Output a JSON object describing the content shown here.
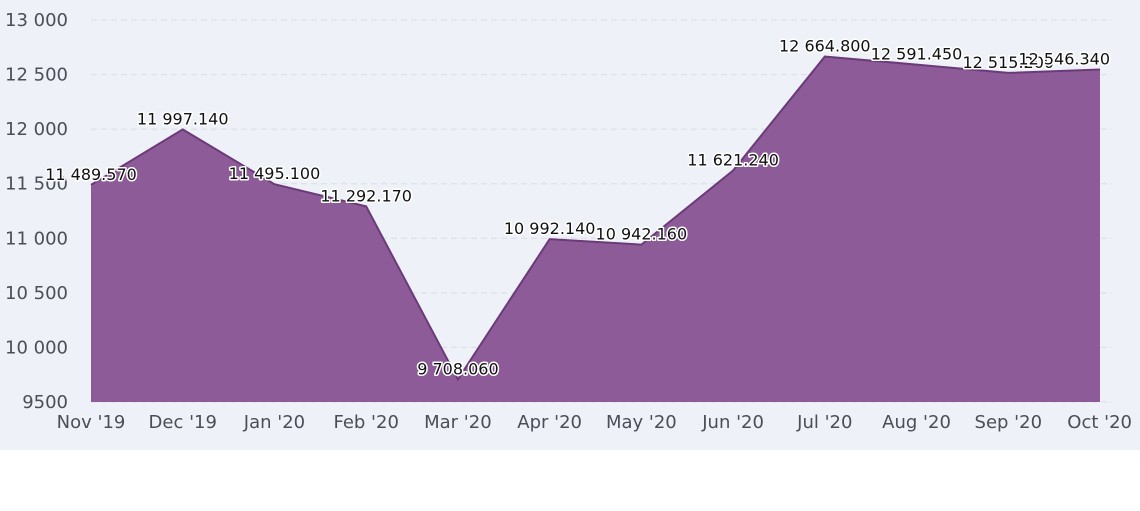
{
  "chart_data": {
    "type": "area",
    "title": "",
    "xlabel": "",
    "ylabel": "",
    "x": [
      "Nov '19",
      "Dec '19",
      "Jan '20",
      "Feb '20",
      "Mar '20",
      "Apr '20",
      "May '20",
      "Jun '20",
      "Jul '20",
      "Aug '20",
      "Sep '20",
      "Oct '20"
    ],
    "values": [
      11489.57,
      11997.14,
      11495.1,
      11292.17,
      9708.06,
      10992.14,
      10942.16,
      11621.24,
      12664.8,
      12591.45,
      12515.2,
      12546.34
    ],
    "data_labels": [
      "11 489.570",
      "11 997.140",
      "11 495.100",
      "11 292.170",
      "9 708.060",
      "10 992.140",
      "10 942.160",
      "11 621.240",
      "12 664.800",
      "12 591.450",
      "12 515.200",
      "12 546.340"
    ],
    "ylim": [
      9500,
      13000
    ],
    "yticks": [
      9500,
      10000,
      10500,
      11000,
      11500,
      12000,
      12500,
      13000
    ],
    "ytick_labels": [
      "9500",
      "10 000",
      "10 500",
      "11 000",
      "11 500",
      "12 000",
      "12 500",
      "13 000"
    ],
    "grid": true,
    "legend": "none",
    "colors": {
      "fill": "#8c5b98",
      "line": "#6b3a78",
      "background": "#eef1f7",
      "grid": "#d9dde6"
    }
  }
}
